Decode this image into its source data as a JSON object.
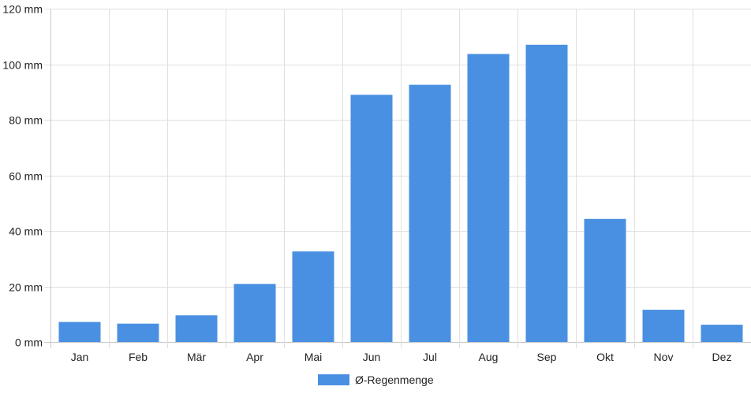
{
  "chart_data": {
    "type": "bar",
    "categories": [
      "Jan",
      "Feb",
      "Mär",
      "Apr",
      "Mai",
      "Jun",
      "Jul",
      "Aug",
      "Sep",
      "Okt",
      "Nov",
      "Dez"
    ],
    "series": [
      {
        "name": "Ø-Regenmenge",
        "values": [
          7.2,
          6.6,
          9.6,
          20.9,
          32.6,
          89,
          92.6,
          103.7,
          107,
          44.3,
          11.6,
          6.2
        ]
      }
    ],
    "y_ticks": [
      "0 mm",
      "20 mm",
      "40 mm",
      "60 mm",
      "80 mm",
      "100 mm",
      "120 mm"
    ],
    "ylim": [
      0,
      120
    ],
    "unit": "mm",
    "grid": true,
    "legend_position": "bottom",
    "color": "#4a90e2"
  }
}
